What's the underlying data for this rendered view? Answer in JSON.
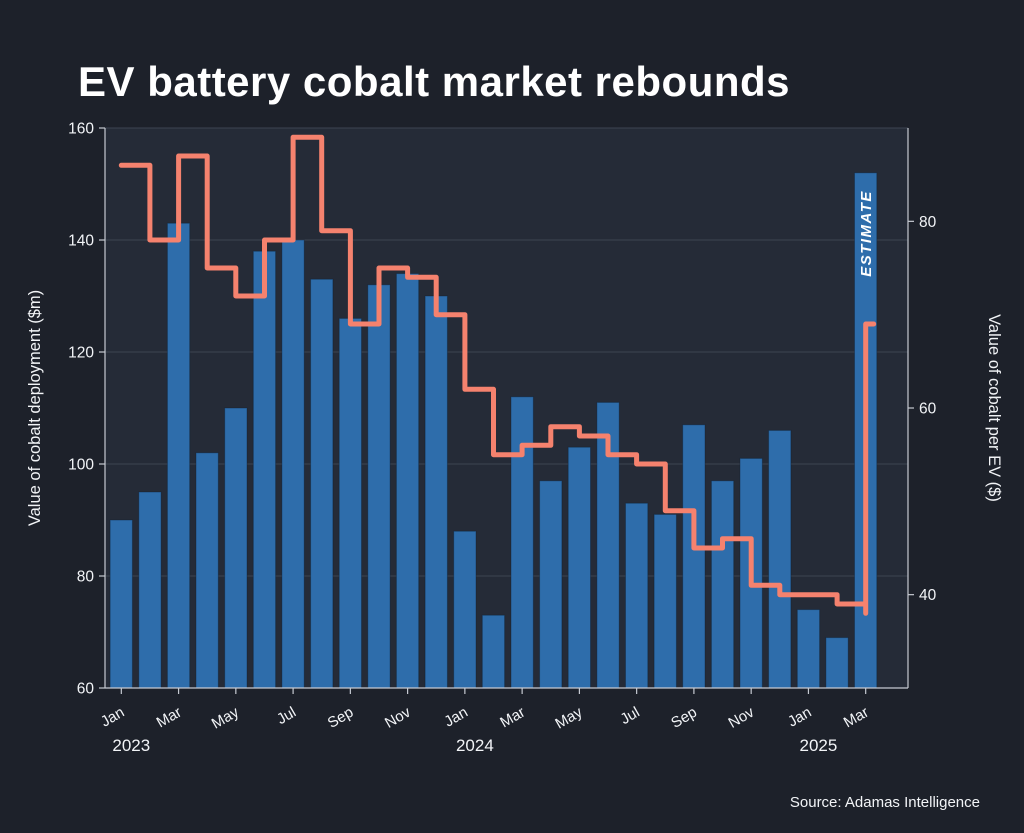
{
  "page": {
    "background": "#1d212a"
  },
  "chart_data": {
    "type": "bar+line-step",
    "title": "EV battery cobalt market rebounds",
    "source": "Source: Adamas Intelligence",
    "grid": true,
    "legend": "none",
    "categories": [
      "Jan 2023",
      "Feb 2023",
      "Mar 2023",
      "Apr 2023",
      "May 2023",
      "Jun 2023",
      "Jul 2023",
      "Aug 2023",
      "Sep 2023",
      "Oct 2023",
      "Nov 2023",
      "Dec 2023",
      "Jan 2024",
      "Feb 2024",
      "Mar 2024",
      "Apr 2024",
      "May 2024",
      "Jun 2024",
      "Jul 2024",
      "Aug 2024",
      "Sep 2024",
      "Oct 2024",
      "Nov 2024",
      "Dec 2024",
      "Jan 2025",
      "Feb 2025",
      "Mar 2025"
    ],
    "bar_series": {
      "name": "Value of cobalt deployment ($m)",
      "axis": "left",
      "values": [
        90,
        95,
        143,
        102,
        110,
        138,
        140,
        133,
        126,
        132,
        134,
        130,
        88,
        73,
        112,
        97,
        103,
        111,
        93,
        91,
        107,
        97,
        101,
        106,
        74,
        69,
        152
      ]
    },
    "line_series": {
      "name": "Value of cobalt per EV ($)",
      "axis": "right",
      "type": "step",
      "values": [
        86,
        78,
        87,
        75,
        72,
        78,
        89,
        79,
        69,
        75,
        74,
        70,
        62,
        55,
        56,
        58,
        57,
        55,
        54,
        49,
        45,
        46,
        41,
        40,
        40,
        39,
        38
      ],
      "end_spike_value": 69
    },
    "left_axis": {
      "label": "Value of cobalt deployment ($m)",
      "min": 60,
      "max": 160,
      "ticks": [
        60,
        80,
        100,
        120,
        140,
        160
      ]
    },
    "right_axis": {
      "label": "Value of cobalt per EV ($)",
      "min": 30,
      "max": 90,
      "ticks": [
        40,
        60,
        80
      ]
    },
    "x_ticks": [
      {
        "i": 0,
        "label": "Jan"
      },
      {
        "i": 2,
        "label": "Mar"
      },
      {
        "i": 4,
        "label": "May"
      },
      {
        "i": 6,
        "label": "Jul"
      },
      {
        "i": 8,
        "label": "Sep"
      },
      {
        "i": 10,
        "label": "Nov"
      },
      {
        "i": 12,
        "label": "Jan"
      },
      {
        "i": 14,
        "label": "Mar"
      },
      {
        "i": 16,
        "label": "May"
      },
      {
        "i": 18,
        "label": "Jul"
      },
      {
        "i": 20,
        "label": "Sep"
      },
      {
        "i": 22,
        "label": "Nov"
      },
      {
        "i": 24,
        "label": "Jan"
      },
      {
        "i": 26,
        "label": "Mar"
      }
    ],
    "year_labels": [
      {
        "i": 0,
        "label": "2023"
      },
      {
        "i": 12,
        "label": "2024"
      },
      {
        "i": 24,
        "label": "2025"
      }
    ],
    "annotation": {
      "text": "ESTIMATE",
      "category": "Mar 2025"
    },
    "colors": {
      "page_bg": "#1d212a",
      "plot_bg": "#252b37",
      "bar": "#2e6dab",
      "line": "#f5826e",
      "grid": "#3d4452",
      "axis": "#c6cad2",
      "text": "#f2f4f7"
    }
  }
}
